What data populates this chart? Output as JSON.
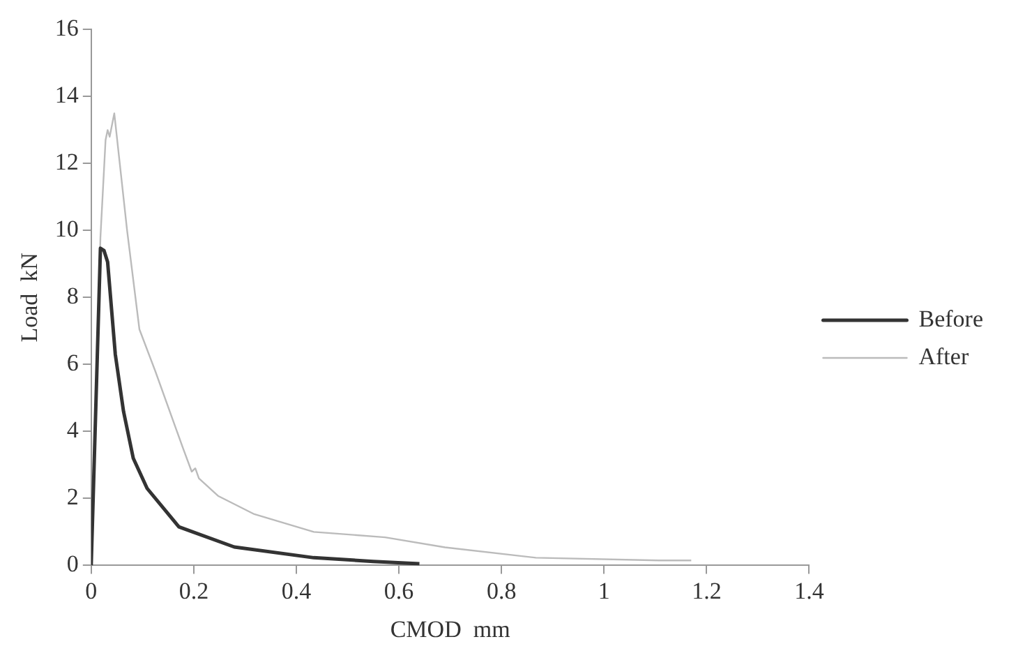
{
  "chart_data": {
    "type": "line",
    "xlabel": "CMOD  mm",
    "ylabel": "Load  kN",
    "xlim": [
      0,
      1.4
    ],
    "xticks": [
      0,
      0.2,
      0.4,
      0.6,
      0.8,
      1,
      1.2,
      1.4
    ],
    "ylim": [
      0,
      16
    ],
    "yticks": [
      0,
      2,
      4,
      6,
      8,
      10,
      12,
      14,
      16
    ],
    "grid": false,
    "legend": "right",
    "marker": "none",
    "series": [
      {
        "name": "Before",
        "color": "#333333",
        "x": [
          0,
          0.018,
          0.025,
          0.032,
          0.047,
          0.063,
          0.082,
          0.109,
          0.171,
          0.279,
          0.434,
          0.55,
          0.64
        ],
        "values": [
          0,
          9.47,
          9.4,
          9.06,
          6.3,
          4.6,
          3.2,
          2.3,
          1.15,
          0.55,
          0.23,
          0.12,
          0.05
        ]
      },
      {
        "name": "After",
        "color": "#bbbbbb",
        "x": [
          0,
          0.018,
          0.028,
          0.032,
          0.036,
          0.045,
          0.055,
          0.07,
          0.094,
          0.125,
          0.179,
          0.196,
          0.203,
          0.21,
          0.248,
          0.318,
          0.434,
          0.573,
          0.69,
          0.867,
          1.107,
          1.17
        ],
        "values": [
          0,
          9.8,
          12.7,
          13.0,
          12.8,
          13.5,
          12.1,
          10.0,
          7.05,
          5.8,
          3.5,
          2.8,
          2.9,
          2.6,
          2.07,
          1.53,
          1.0,
          0.84,
          0.54,
          0.23,
          0.15,
          0.15
        ]
      }
    ]
  }
}
